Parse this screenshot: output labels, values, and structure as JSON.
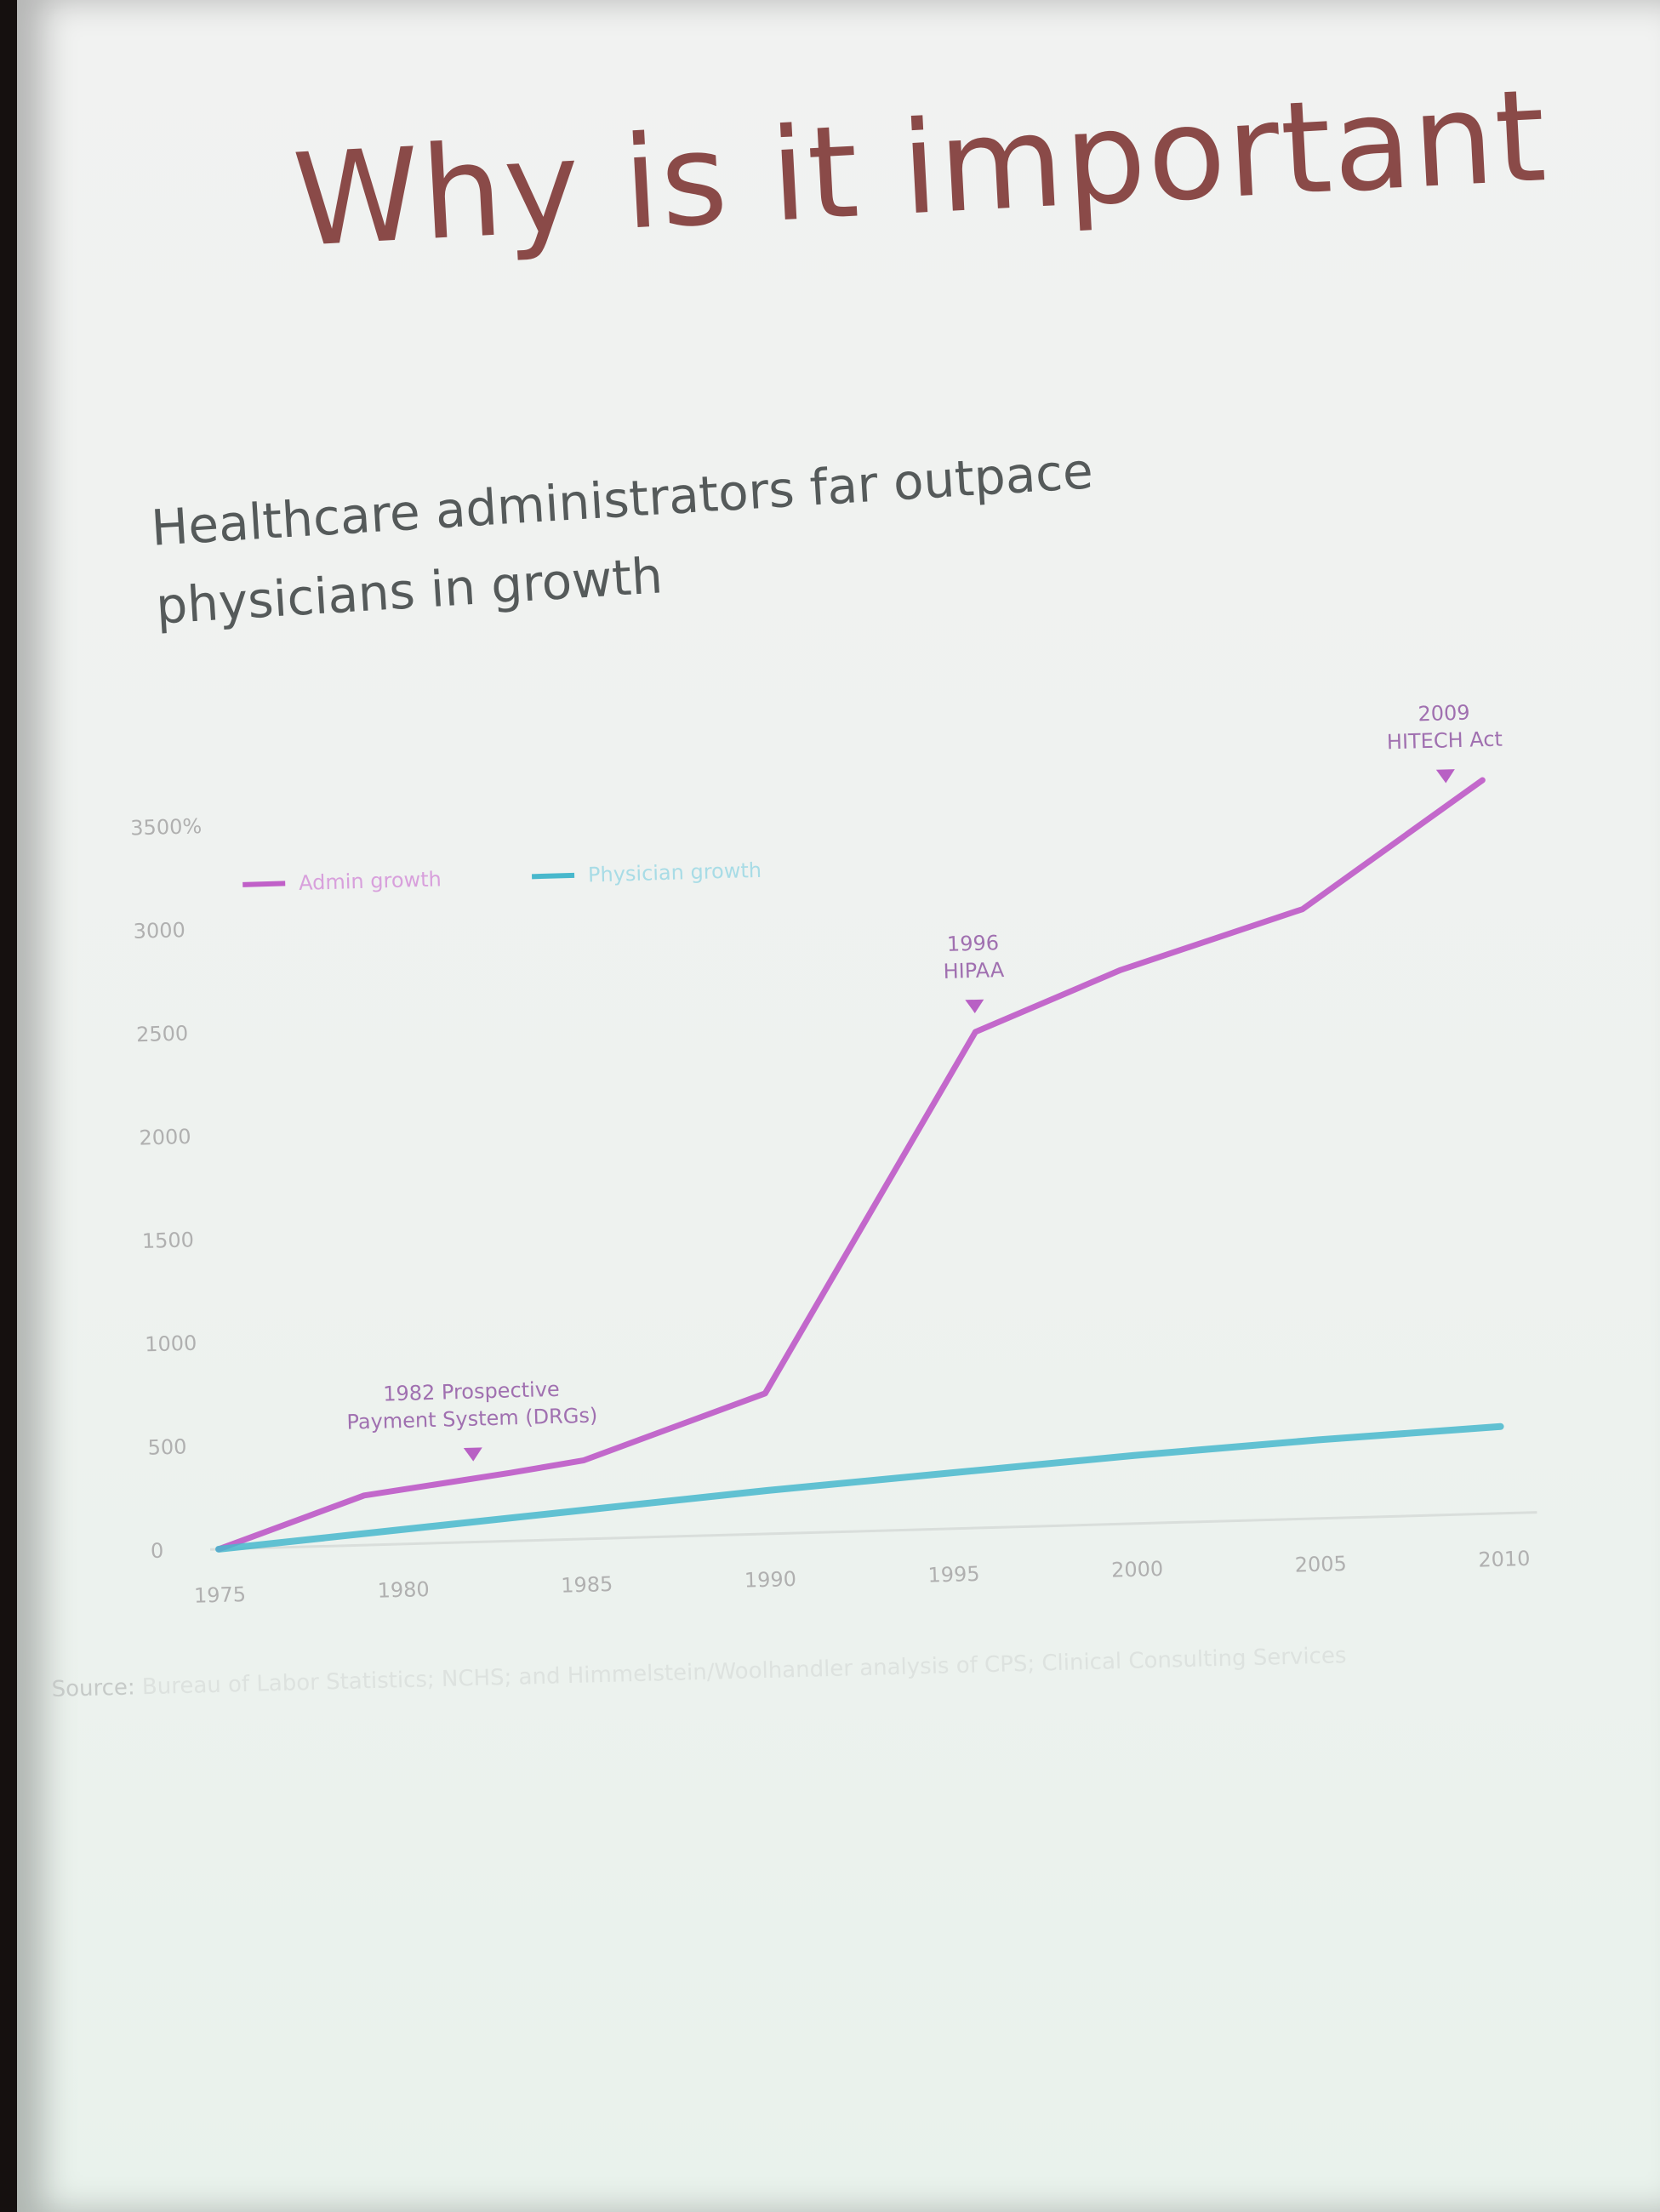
{
  "slide": {
    "title": "Why is it important"
  },
  "chart_data": {
    "type": "line",
    "title": "Healthcare administrators far outpace physicians in growth",
    "xlabel": "",
    "ylabel": "",
    "xlim": [
      1975,
      2010
    ],
    "ylim": [
      0,
      3500
    ],
    "x_ticks": [
      1975,
      1980,
      1985,
      1990,
      1995,
      2000,
      2005,
      2010
    ],
    "x_tick_labels": [
      "1975",
      "1980",
      "1985",
      "1990",
      "1995",
      "2000",
      "2005",
      "2010"
    ],
    "y_ticks": [
      0,
      500,
      1000,
      1500,
      2000,
      2500,
      3000,
      3500
    ],
    "y_tick_labels": [
      "0",
      "500",
      "1000",
      "1500",
      "2000",
      "2500",
      "3000",
      "3500%"
    ],
    "grid": false,
    "legend_position": "top-left",
    "series": [
      {
        "name": "Admin growth",
        "color": "#c060c8",
        "x": [
          1975,
          1979,
          1983,
          1985,
          1990,
          1996,
          2000,
          2005,
          2010
        ],
        "y": [
          0,
          240,
          330,
          380,
          680,
          2400,
          2680,
          2950,
          3550
        ]
      },
      {
        "name": "Physician growth",
        "color": "#48b8cc",
        "x": [
          1975,
          1980,
          1985,
          1990,
          1995,
          2000,
          2005,
          2010
        ],
        "y": [
          0,
          70,
          140,
          210,
          270,
          330,
          380,
          420
        ]
      }
    ],
    "annotations": [
      {
        "text": "1982 Prospective",
        "text2": "Payment System (DRGs)",
        "x": 1982,
        "y": 300
      },
      {
        "text": "1996",
        "text2": "HIPAA",
        "x": 1996,
        "y": 2400
      },
      {
        "text": "2009",
        "text2": "HITECH Act",
        "x": 2009,
        "y": 3450
      }
    ]
  },
  "source": {
    "label": "Source:",
    "text": "Bureau of Labor Statistics; NCHS; and Himmelstein/Woolhandler analysis of CPS; Clinical Consulting Services"
  }
}
